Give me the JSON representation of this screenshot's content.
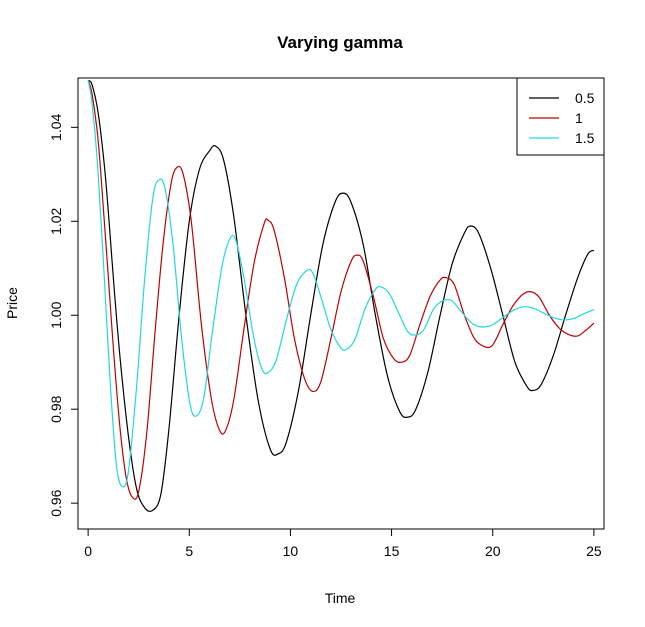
{
  "chart_data": {
    "type": "line",
    "title": "Varying gamma",
    "xlabel": "Time",
    "ylabel": "Price",
    "xlim": [
      -0.5,
      25.5
    ],
    "ylim": [
      0.9545,
      1.0505
    ],
    "x_ticks": [
      0,
      5,
      10,
      15,
      20,
      25
    ],
    "x_tick_labels": [
      "0",
      "5",
      "10",
      "15",
      "20",
      "25"
    ],
    "y_ticks": [
      0.96,
      0.98,
      1.0,
      1.02,
      1.04
    ],
    "y_tick_labels": [
      "0.96",
      "0.98",
      "1.00",
      "1.02",
      "1.04"
    ],
    "grid": false,
    "legend_position": "top-right",
    "series": [
      {
        "name": "0.5",
        "color": "#000000",
        "points": [
          [
            0,
            1.05
          ],
          [
            0.2,
            1.049
          ],
          [
            0.5,
            1.043
          ],
          [
            0.8,
            1.032
          ],
          [
            1.0,
            1.022
          ],
          [
            1.3,
            1.005
          ],
          [
            1.6,
            0.99
          ],
          [
            2.0,
            0.974
          ],
          [
            2.4,
            0.963
          ],
          [
            2.8,
            0.959
          ],
          [
            3.2,
            0.9585
          ],
          [
            3.6,
            0.962
          ],
          [
            4.0,
            0.976
          ],
          [
            4.5,
            1.0
          ],
          [
            5.0,
            1.02
          ],
          [
            5.5,
            1.031
          ],
          [
            6.0,
            1.035
          ],
          [
            6.3,
            1.036
          ],
          [
            6.7,
            1.033
          ],
          [
            7.2,
            1.021
          ],
          [
            7.8,
            1.0
          ],
          [
            8.4,
            0.982
          ],
          [
            9.0,
            0.9715
          ],
          [
            9.4,
            0.9705
          ],
          [
            9.8,
            0.973
          ],
          [
            10.4,
            0.984
          ],
          [
            11.0,
            1.0
          ],
          [
            11.6,
            1.015
          ],
          [
            12.2,
            1.024
          ],
          [
            12.6,
            1.026
          ],
          [
            13.0,
            1.024
          ],
          [
            13.6,
            1.015
          ],
          [
            14.2,
            1.0
          ],
          [
            14.8,
            0.987
          ],
          [
            15.4,
            0.9795
          ],
          [
            15.8,
            0.9783
          ],
          [
            16.2,
            0.98
          ],
          [
            16.8,
            0.988
          ],
          [
            17.4,
            1.0
          ],
          [
            18.0,
            1.011
          ],
          [
            18.6,
            1.0175
          ],
          [
            18.9,
            1.019
          ],
          [
            19.3,
            1.0175
          ],
          [
            19.9,
            1.01
          ],
          [
            20.5,
            1.0
          ],
          [
            21.1,
            0.99
          ],
          [
            21.7,
            0.9848
          ],
          [
            22.0,
            0.984
          ],
          [
            22.4,
            0.9853
          ],
          [
            23.0,
            0.9915
          ],
          [
            23.6,
            1.0
          ],
          [
            24.2,
            1.008
          ],
          [
            24.7,
            1.013
          ],
          [
            25.0,
            1.0138
          ]
        ]
      },
      {
        "name": "1",
        "color": "#c00000",
        "points": [
          [
            0,
            1.05
          ],
          [
            0.2,
            1.047
          ],
          [
            0.5,
            1.037
          ],
          [
            0.8,
            1.02
          ],
          [
            1.0,
            1.008
          ],
          [
            1.3,
            0.99
          ],
          [
            1.6,
            0.975
          ],
          [
            1.9,
            0.965
          ],
          [
            2.2,
            0.9612
          ],
          [
            2.5,
            0.9625
          ],
          [
            2.9,
            0.975
          ],
          [
            3.3,
            0.996
          ],
          [
            3.7,
            1.015
          ],
          [
            4.1,
            1.028
          ],
          [
            4.4,
            1.0315
          ],
          [
            4.7,
            1.03
          ],
          [
            5.1,
            1.02
          ],
          [
            5.6,
            0.998
          ],
          [
            6.1,
            0.982
          ],
          [
            6.5,
            0.9755
          ],
          [
            6.8,
            0.9755
          ],
          [
            7.2,
            0.982
          ],
          [
            7.7,
            0.997
          ],
          [
            8.2,
            1.011
          ],
          [
            8.7,
            1.0195
          ],
          [
            8.9,
            1.0202
          ],
          [
            9.2,
            1.018
          ],
          [
            9.7,
            1.008
          ],
          [
            10.2,
            0.995
          ],
          [
            10.7,
            0.9865
          ],
          [
            11.1,
            0.9838
          ],
          [
            11.5,
            0.9858
          ],
          [
            12.0,
            0.995
          ],
          [
            12.5,
            1.005
          ],
          [
            13.0,
            1.0115
          ],
          [
            13.3,
            1.0128
          ],
          [
            13.6,
            1.0115
          ],
          [
            14.1,
            1.004
          ],
          [
            14.6,
            0.995
          ],
          [
            15.1,
            0.9908
          ],
          [
            15.5,
            0.99
          ],
          [
            15.9,
            0.9915
          ],
          [
            16.4,
            0.998
          ],
          [
            16.9,
            1.004
          ],
          [
            17.4,
            1.0075
          ],
          [
            17.7,
            1.008
          ],
          [
            18.1,
            1.0065
          ],
          [
            18.6,
            1.0
          ],
          [
            19.1,
            0.995
          ],
          [
            19.6,
            0.9933
          ],
          [
            20.0,
            0.9937
          ],
          [
            20.5,
            0.998
          ],
          [
            21.0,
            1.002
          ],
          [
            21.5,
            1.0045
          ],
          [
            21.9,
            1.005
          ],
          [
            22.3,
            1.0038
          ],
          [
            22.8,
            1.0
          ],
          [
            23.3,
            0.9972
          ],
          [
            23.8,
            0.9958
          ],
          [
            24.2,
            0.9956
          ],
          [
            24.6,
            0.9968
          ],
          [
            25.0,
            0.9983
          ]
        ]
      },
      {
        "name": "1.5",
        "color": "#20d8e0",
        "points": [
          [
            0,
            1.05
          ],
          [
            0.2,
            1.045
          ],
          [
            0.5,
            1.03
          ],
          [
            0.8,
            1.008
          ],
          [
            1.1,
            0.985
          ],
          [
            1.4,
            0.968
          ],
          [
            1.7,
            0.9635
          ],
          [
            2.0,
            0.967
          ],
          [
            2.4,
            0.985
          ],
          [
            2.8,
            1.008
          ],
          [
            3.2,
            1.025
          ],
          [
            3.5,
            1.0288
          ],
          [
            3.8,
            1.027
          ],
          [
            4.2,
            1.015
          ],
          [
            4.6,
            0.996
          ],
          [
            5.0,
            0.982
          ],
          [
            5.3,
            0.9785
          ],
          [
            5.7,
            0.982
          ],
          [
            6.1,
            0.995
          ],
          [
            6.6,
            1.01
          ],
          [
            7.0,
            1.0162
          ],
          [
            7.3,
            1.016
          ],
          [
            7.7,
            1.008
          ],
          [
            8.2,
            0.995
          ],
          [
            8.6,
            0.9885
          ],
          [
            8.9,
            0.9878
          ],
          [
            9.3,
            0.9905
          ],
          [
            9.8,
            0.999
          ],
          [
            10.3,
            1.0065
          ],
          [
            10.8,
            1.0095
          ],
          [
            11.1,
            1.009
          ],
          [
            11.5,
            1.004
          ],
          [
            12.0,
            0.997
          ],
          [
            12.5,
            0.993
          ],
          [
            12.8,
            0.9928
          ],
          [
            13.2,
            0.995
          ],
          [
            13.7,
            1.0015
          ],
          [
            14.2,
            1.0055
          ],
          [
            14.5,
            1.006
          ],
          [
            14.9,
            1.0045
          ],
          [
            15.4,
            1.0
          ],
          [
            15.8,
            0.9965
          ],
          [
            16.2,
            0.9958
          ],
          [
            16.6,
            0.997
          ],
          [
            17.1,
            1.0015
          ],
          [
            17.6,
            1.0032
          ],
          [
            18.0,
            1.003
          ],
          [
            18.5,
            1.0005
          ],
          [
            19.0,
            0.9982
          ],
          [
            19.5,
            0.9975
          ],
          [
            20.0,
            0.998
          ],
          [
            20.5,
            0.9995
          ],
          [
            21.0,
            1.001
          ],
          [
            21.5,
            1.0018
          ],
          [
            22.0,
            1.0015
          ],
          [
            22.5,
            1.0005
          ],
          [
            23.0,
            0.9995
          ],
          [
            23.5,
            0.999
          ],
          [
            24.0,
            0.9993
          ],
          [
            24.5,
            1.0003
          ],
          [
            25.0,
            1.0012
          ]
        ]
      }
    ]
  }
}
